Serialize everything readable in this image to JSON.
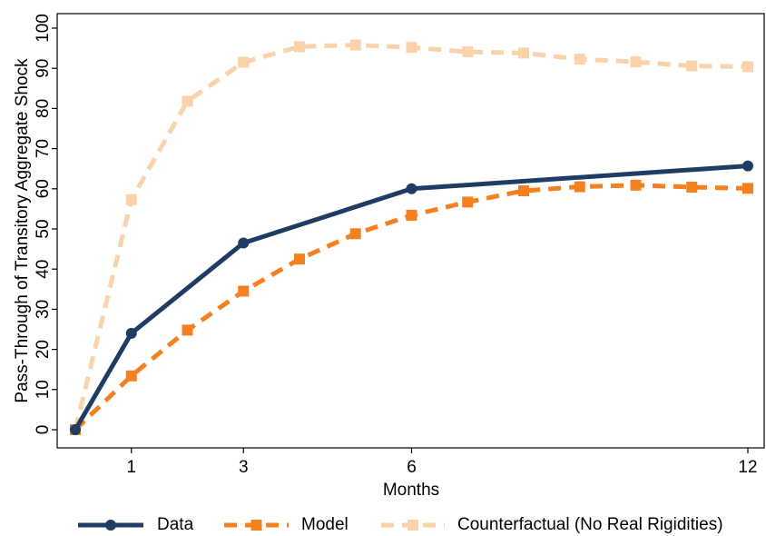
{
  "chart_data": {
    "type": "line",
    "title": "",
    "xlabel": "Months",
    "ylabel": "Pass-Through of Transitory Aggregate Shock",
    "xlim": [
      0,
      12
    ],
    "ylim": [
      0,
      100
    ],
    "x_ticks": [
      1,
      3,
      6,
      12
    ],
    "y_ticks": [
      0,
      10,
      20,
      30,
      40,
      50,
      60,
      70,
      80,
      90,
      100
    ],
    "grid": false,
    "legend_position": "bottom",
    "series": [
      {
        "name": "Data",
        "color": "#1f3d64",
        "style": "solid",
        "marker": "circle",
        "x": [
          0,
          1,
          3,
          6,
          12
        ],
        "y": [
          0,
          24,
          46.5,
          60,
          65.7
        ]
      },
      {
        "name": "Model",
        "color": "#f4801f",
        "style": "dashed",
        "marker": "square",
        "x": [
          0,
          1,
          2,
          3,
          4,
          5,
          6,
          7,
          8,
          9,
          10,
          11,
          12
        ],
        "y": [
          0,
          13.4,
          24.8,
          34.5,
          42.5,
          48.8,
          53.4,
          56.7,
          59.5,
          60.5,
          60.9,
          60.4,
          60.1
        ]
      },
      {
        "name": "Counterfactual (No Real Rigidities)",
        "color": "#fad3aa",
        "style": "dashed",
        "marker": "square",
        "x": [
          0,
          1,
          2,
          3,
          4,
          5,
          6,
          7,
          8,
          9,
          10,
          11,
          12
        ],
        "y": [
          0,
          57.3,
          81.8,
          91.5,
          95.4,
          95.8,
          95.2,
          94.1,
          93.8,
          92.3,
          91.6,
          90.6,
          90.4
        ]
      }
    ]
  }
}
